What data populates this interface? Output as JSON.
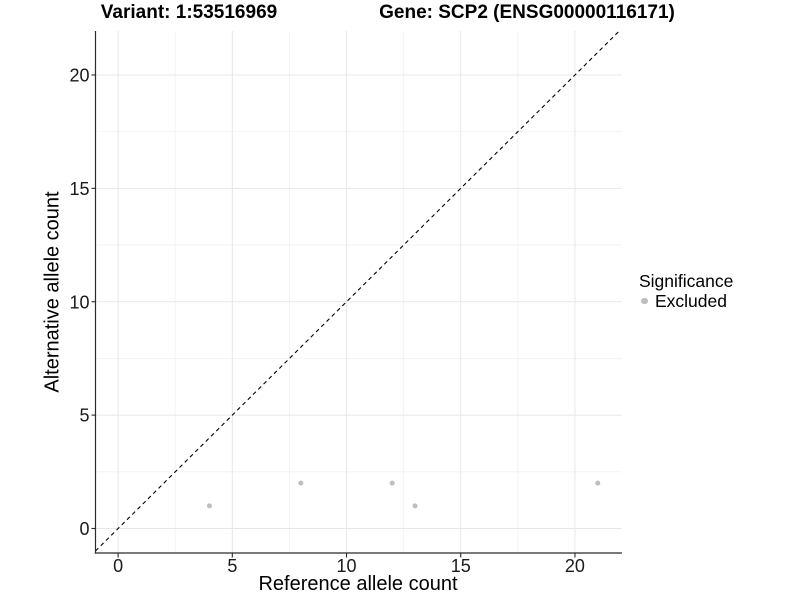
{
  "titles": {
    "variant": "Variant: 1:53516969",
    "gene": "Gene: SCP2 (ENSG00000116171)"
  },
  "chart_data": {
    "type": "scatter",
    "title_left": "Variant: 1:53516969",
    "title_right": "Gene: SCP2 (ENSG00000116171)",
    "xlabel": "Reference allele count",
    "ylabel": "Alternative allele count",
    "x_ticks": [
      0,
      5,
      10,
      15,
      20
    ],
    "y_ticks": [
      0,
      5,
      10,
      15,
      20
    ],
    "x_minor_ticks": [
      2.5,
      7.5,
      12.5,
      17.5
    ],
    "y_minor_ticks": [
      2.5,
      7.5,
      12.5,
      17.5
    ],
    "xlim": [
      -0.99,
      22.06
    ],
    "ylim": [
      -1.08,
      21.94
    ],
    "grid": true,
    "identity_line": {
      "x1": -0.99,
      "y1": -0.99,
      "x2": 21.94,
      "y2": 21.94,
      "style": "dashed",
      "color": "#000000"
    },
    "series": [
      {
        "name": "Excluded",
        "color": "#bebebe",
        "points": [
          [
            4,
            1
          ],
          [
            8,
            2
          ],
          [
            12,
            2
          ],
          [
            13,
            1
          ],
          [
            21,
            2
          ]
        ]
      }
    ],
    "legend": {
      "title": "Significance",
      "position": "right",
      "items": [
        {
          "label": "Excluded",
          "color": "#bebebe"
        }
      ]
    },
    "colors": {
      "grid_major": "#e7e7e7",
      "grid_minor": "#f2f2f2",
      "axis_line": "#2b2b2b",
      "tick_text": "#1a1a1a",
      "point": "#bebebe"
    }
  }
}
